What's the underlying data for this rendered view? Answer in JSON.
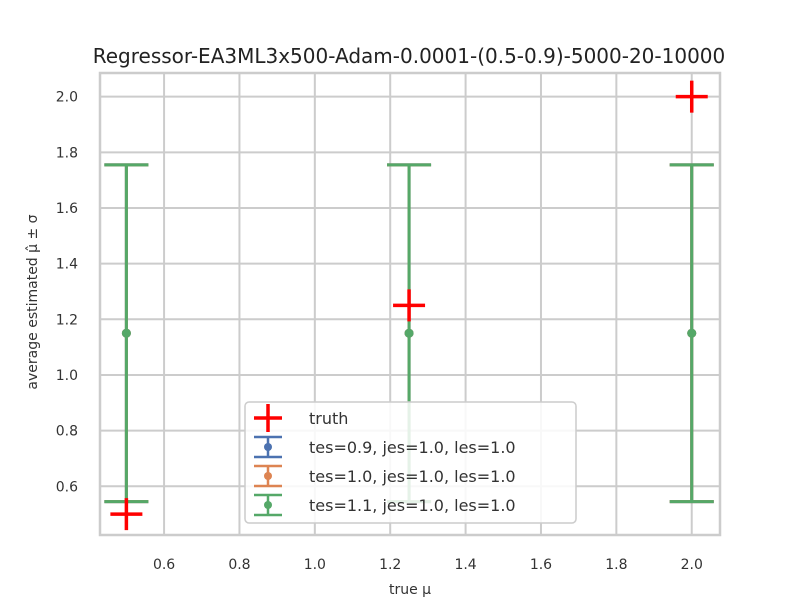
{
  "chart_data": {
    "type": "errorbar",
    "title": "Regressor-EA3ML3x500-Adam-0.0001-(0.5-0.9)-5000-20-10000",
    "xlabel": "true μ",
    "ylabel": "average estimated μ̂ ± σ",
    "xlim": [
      0.43,
      2.075
    ],
    "ylim": [
      0.425,
      2.085
    ],
    "x_ticks": [
      0.6,
      0.8,
      1.0,
      1.2,
      1.4,
      1.6,
      1.8,
      2.0
    ],
    "y_ticks": [
      0.6,
      0.8,
      1.0,
      1.2,
      1.4,
      1.6,
      1.8,
      2.0
    ],
    "x_tick_labels": [
      "0.6",
      "0.8",
      "1.0",
      "1.2",
      "1.4",
      "1.6",
      "1.8",
      "2.0"
    ],
    "y_tick_labels": [
      "0.6",
      "0.8",
      "1.0",
      "1.2",
      "1.4",
      "1.6",
      "1.8",
      "2.0"
    ],
    "grid": true,
    "legend_position": "lower-center",
    "truth": {
      "name": "truth",
      "color": "#ff0000",
      "x": [
        0.5,
        1.25,
        2.0
      ],
      "y": [
        0.5,
        1.25,
        2.0
      ]
    },
    "series": [
      {
        "name": "tes=0.9, jes=1.0, les=1.0",
        "color": "#4c72b0",
        "x": [
          0.5,
          1.25,
          2.0
        ],
        "y": [
          1.15,
          1.15,
          1.15
        ],
        "yerr_low": [
          0.545,
          0.545,
          0.545
        ],
        "yerr_high": [
          1.755,
          1.755,
          1.755
        ]
      },
      {
        "name": "tes=1.0, jes=1.0, les=1.0",
        "color": "#dd8452",
        "x": [
          0.5,
          1.25,
          2.0
        ],
        "y": [
          1.15,
          1.15,
          1.15
        ],
        "yerr_low": [
          0.545,
          0.545,
          0.545
        ],
        "yerr_high": [
          1.755,
          1.755,
          1.755
        ]
      },
      {
        "name": "tes=1.1, jes=1.0, les=1.0",
        "color": "#55a868",
        "x": [
          0.5,
          1.25,
          2.0
        ],
        "y": [
          1.15,
          1.15,
          1.15
        ],
        "yerr_low": [
          0.545,
          0.545,
          0.545
        ],
        "yerr_high": [
          1.755,
          1.755,
          1.755
        ]
      }
    ]
  }
}
